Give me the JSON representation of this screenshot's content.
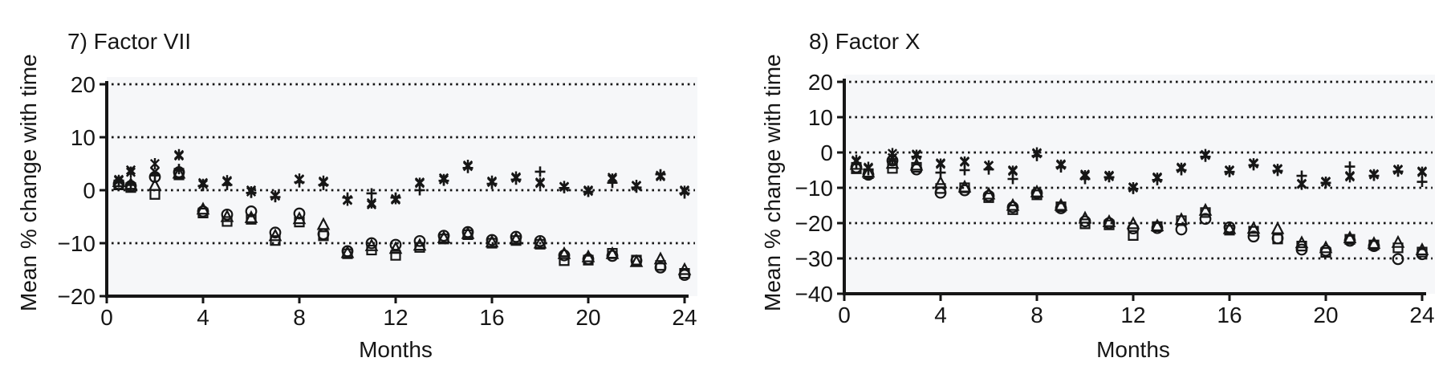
{
  "figure": {
    "background": "#ffffff",
    "plot_background": "#f6f7f9",
    "ink_color": "#161616"
  },
  "chart_data": [
    {
      "type": "scatter",
      "title": "7) Factor VII",
      "xlabel": "Months",
      "ylabel": "Mean % change with time",
      "xlim": [
        0,
        24
      ],
      "ylim": [
        -20,
        20
      ],
      "xticks": [
        0,
        4,
        8,
        12,
        16,
        20,
        24
      ],
      "yticks": [
        20,
        10,
        0,
        -10,
        -20
      ],
      "ytick_labels": [
        "20",
        "10",
        "0",
        "−10",
        "−20"
      ],
      "gridline_values": [
        20,
        10,
        0,
        -10
      ],
      "grid": "dotted horizontal",
      "legend_position": "none",
      "x_months": [
        0.5,
        1,
        2,
        3,
        4,
        5,
        6,
        7,
        8,
        9,
        10,
        11,
        12,
        13,
        14,
        15,
        16,
        17,
        18,
        19,
        20,
        21,
        22,
        23,
        24
      ],
      "series": [
        {
          "name": "cross",
          "marker": "cross",
          "values": [
            2.0,
            3.8,
            3.5,
            6.5,
            1.4,
            1.6,
            0.0,
            -1.0,
            2.0,
            1.5,
            -1.8,
            -2.7,
            -1.8,
            1.5,
            2.3,
            4.5,
            1.5,
            2.3,
            1.5,
            0.6,
            0.0,
            2.4,
            0.8,
            2.6,
            0.0
          ]
        },
        {
          "name": "plus",
          "marker": "plus",
          "values": [
            1.5,
            1.0,
            2.8,
            4.0,
            0.8,
            1.0,
            -0.5,
            -1.3,
            1.5,
            1.0,
            -1.4,
            -0.6,
            -1.4,
            0.0,
            1.8,
            4.2,
            1.2,
            2.0,
            3.5,
            0.4,
            -0.3,
            1.4,
            0.5,
            3.0,
            -0.6
          ]
        },
        {
          "name": "asterisk",
          "marker": "asterisk",
          "values": [
            1.8,
            3.4,
            5.0,
            6.7,
            1.1,
            1.8,
            -0.3,
            -1.1,
            2.1,
            1.7,
            -1.9,
            -2.4,
            -1.6,
            1.3,
            2.0,
            4.7,
            1.7,
            2.5,
            1.3,
            0.7,
            -0.2,
            2.1,
            0.9,
            2.8,
            -0.2
          ]
        },
        {
          "name": "circle",
          "marker": "circle",
          "values": [
            1.2,
            0.8,
            2.5,
            3.4,
            -4.0,
            -4.6,
            -4.0,
            -8.0,
            -4.4,
            -8.3,
            -11.5,
            -10.0,
            -10.3,
            -9.6,
            -8.6,
            -7.9,
            -9.4,
            -8.8,
            -9.6,
            -12.3,
            -13.0,
            -12.4,
            -13.3,
            -14.6,
            -16.0
          ]
        },
        {
          "name": "triangle",
          "marker": "triangle",
          "values": [
            1.6,
            1.1,
            0.9,
            3.2,
            -3.6,
            -5.0,
            -5.2,
            -8.6,
            -5.4,
            -6.5,
            -11.8,
            -10.5,
            -11.0,
            -10.4,
            -9.0,
            -8.2,
            -9.8,
            -9.2,
            -10.0,
            -12.0,
            -12.6,
            -12.0,
            -13.5,
            -13.0,
            -15.0
          ]
        },
        {
          "name": "square",
          "marker": "square",
          "values": [
            1.0,
            0.5,
            -0.8,
            2.9,
            -4.3,
            -5.9,
            -5.5,
            -9.5,
            -6.0,
            -8.6,
            -12.0,
            -11.3,
            -12.3,
            -10.8,
            -9.2,
            -8.4,
            -10.0,
            -9.5,
            -10.2,
            -13.3,
            -13.2,
            -11.9,
            -13.2,
            -14.2,
            -15.7
          ]
        }
      ]
    },
    {
      "type": "scatter",
      "title": "8) Factor X",
      "xlabel": "Months",
      "ylabel": "Mean % change with time",
      "xlim": [
        0,
        24
      ],
      "ylim": [
        -40,
        20
      ],
      "xticks": [
        0,
        4,
        8,
        12,
        16,
        20,
        24
      ],
      "yticks": [
        20,
        10,
        0,
        -10,
        -20,
        -30,
        -40
      ],
      "ytick_labels": [
        "20",
        "10",
        "0",
        "−10",
        "−20",
        "−30",
        "−40"
      ],
      "gridline_values": [
        20,
        10,
        0,
        -10,
        -20,
        -30
      ],
      "grid": "dotted horizontal",
      "legend_position": "none",
      "x_months": [
        0.5,
        1,
        2,
        3,
        4,
        5,
        6,
        7,
        8,
        9,
        10,
        11,
        12,
        13,
        14,
        15,
        16,
        17,
        18,
        19,
        20,
        21,
        22,
        23,
        24
      ],
      "series": [
        {
          "name": "cross",
          "marker": "cross",
          "values": [
            -2.5,
            -4.5,
            -1.5,
            -0.5,
            -3.0,
            -2.5,
            -3.7,
            -5.0,
            -0.3,
            -3.3,
            -6.2,
            -6.5,
            -9.8,
            -7.0,
            -4.2,
            -0.8,
            -5.0,
            -3.0,
            -4.6,
            -8.8,
            -8.2,
            -6.6,
            -6.1,
            -4.8,
            -5.3
          ]
        },
        {
          "name": "plus",
          "marker": "plus",
          "values": [
            -3.0,
            -5.0,
            -1.8,
            -1.2,
            -5.7,
            -5.0,
            -4.8,
            -7.5,
            -1.0,
            -4.2,
            -7.5,
            -7.0,
            -10.3,
            -7.8,
            -5.0,
            -1.2,
            -5.5,
            -3.6,
            -5.2,
            -6.6,
            -8.6,
            -4.0,
            -6.6,
            -5.4,
            -8.3
          ]
        },
        {
          "name": "asterisk",
          "marker": "asterisk",
          "values": [
            -2.2,
            -4.2,
            -0.3,
            -0.8,
            -3.3,
            -2.7,
            -3.8,
            -5.3,
            -0.1,
            -3.6,
            -6.6,
            -6.8,
            -10.0,
            -7.3,
            -4.5,
            -0.6,
            -5.2,
            -3.2,
            -4.8,
            -9.0,
            -8.4,
            -6.9,
            -6.3,
            -5.0,
            -5.6
          ]
        },
        {
          "name": "circle",
          "marker": "circle",
          "values": [
            -4.2,
            -6.3,
            -2.3,
            -4.8,
            -11.4,
            -10.7,
            -12.3,
            -15.5,
            -11.5,
            -15.8,
            -19.5,
            -20.0,
            -21.5,
            -21.4,
            -21.8,
            -18.8,
            -21.2,
            -23.8,
            -24.3,
            -27.5,
            -27.8,
            -25.0,
            -26.5,
            -30.2,
            -28.8
          ]
        },
        {
          "name": "triangle",
          "marker": "triangle",
          "values": [
            -3.4,
            -5.6,
            -3.1,
            -3.6,
            -8.6,
            -9.8,
            -11.8,
            -15.0,
            -11.2,
            -15.0,
            -18.6,
            -19.6,
            -20.2,
            -20.8,
            -19.0,
            -16.4,
            -21.6,
            -21.5,
            -21.6,
            -25.6,
            -27.0,
            -24.2,
            -25.8,
            -25.5,
            -27.6
          ]
        },
        {
          "name": "square",
          "marker": "square",
          "values": [
            -4.6,
            -6.0,
            -4.5,
            -4.2,
            -10.2,
            -10.0,
            -12.8,
            -16.2,
            -12.0,
            -15.4,
            -20.2,
            -20.5,
            -23.5,
            -21.0,
            -19.3,
            -17.0,
            -22.0,
            -22.3,
            -24.5,
            -26.5,
            -28.3,
            -24.6,
            -26.2,
            -27.0,
            -28.2
          ]
        }
      ]
    }
  ]
}
